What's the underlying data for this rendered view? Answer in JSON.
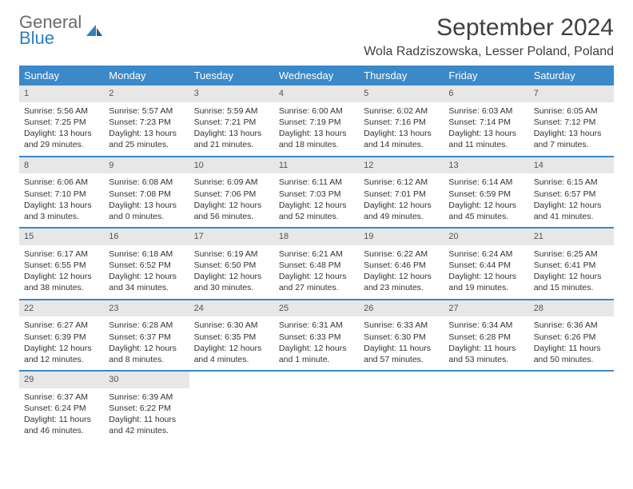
{
  "brand": {
    "line1": "General",
    "line2": "Blue"
  },
  "title": "September 2024",
  "location": "Wola Radziszowska, Lesser Poland, Poland",
  "colors": {
    "header_bg": "#3a89c9",
    "header_fg": "#ffffff",
    "daynum_bg": "#e7e7e7",
    "rule": "#3a89c9",
    "text": "#333333"
  },
  "dayNames": [
    "Sunday",
    "Monday",
    "Tuesday",
    "Wednesday",
    "Thursday",
    "Friday",
    "Saturday"
  ],
  "weeks": [
    [
      {
        "n": "1",
        "sr": "Sunrise: 5:56 AM",
        "ss": "Sunset: 7:25 PM",
        "d1": "Daylight: 13 hours",
        "d2": "and 29 minutes."
      },
      {
        "n": "2",
        "sr": "Sunrise: 5:57 AM",
        "ss": "Sunset: 7:23 PM",
        "d1": "Daylight: 13 hours",
        "d2": "and 25 minutes."
      },
      {
        "n": "3",
        "sr": "Sunrise: 5:59 AM",
        "ss": "Sunset: 7:21 PM",
        "d1": "Daylight: 13 hours",
        "d2": "and 21 minutes."
      },
      {
        "n": "4",
        "sr": "Sunrise: 6:00 AM",
        "ss": "Sunset: 7:19 PM",
        "d1": "Daylight: 13 hours",
        "d2": "and 18 minutes."
      },
      {
        "n": "5",
        "sr": "Sunrise: 6:02 AM",
        "ss": "Sunset: 7:16 PM",
        "d1": "Daylight: 13 hours",
        "d2": "and 14 minutes."
      },
      {
        "n": "6",
        "sr": "Sunrise: 6:03 AM",
        "ss": "Sunset: 7:14 PM",
        "d1": "Daylight: 13 hours",
        "d2": "and 11 minutes."
      },
      {
        "n": "7",
        "sr": "Sunrise: 6:05 AM",
        "ss": "Sunset: 7:12 PM",
        "d1": "Daylight: 13 hours",
        "d2": "and 7 minutes."
      }
    ],
    [
      {
        "n": "8",
        "sr": "Sunrise: 6:06 AM",
        "ss": "Sunset: 7:10 PM",
        "d1": "Daylight: 13 hours",
        "d2": "and 3 minutes."
      },
      {
        "n": "9",
        "sr": "Sunrise: 6:08 AM",
        "ss": "Sunset: 7:08 PM",
        "d1": "Daylight: 13 hours",
        "d2": "and 0 minutes."
      },
      {
        "n": "10",
        "sr": "Sunrise: 6:09 AM",
        "ss": "Sunset: 7:06 PM",
        "d1": "Daylight: 12 hours",
        "d2": "and 56 minutes."
      },
      {
        "n": "11",
        "sr": "Sunrise: 6:11 AM",
        "ss": "Sunset: 7:03 PM",
        "d1": "Daylight: 12 hours",
        "d2": "and 52 minutes."
      },
      {
        "n": "12",
        "sr": "Sunrise: 6:12 AM",
        "ss": "Sunset: 7:01 PM",
        "d1": "Daylight: 12 hours",
        "d2": "and 49 minutes."
      },
      {
        "n": "13",
        "sr": "Sunrise: 6:14 AM",
        "ss": "Sunset: 6:59 PM",
        "d1": "Daylight: 12 hours",
        "d2": "and 45 minutes."
      },
      {
        "n": "14",
        "sr": "Sunrise: 6:15 AM",
        "ss": "Sunset: 6:57 PM",
        "d1": "Daylight: 12 hours",
        "d2": "and 41 minutes."
      }
    ],
    [
      {
        "n": "15",
        "sr": "Sunrise: 6:17 AM",
        "ss": "Sunset: 6:55 PM",
        "d1": "Daylight: 12 hours",
        "d2": "and 38 minutes."
      },
      {
        "n": "16",
        "sr": "Sunrise: 6:18 AM",
        "ss": "Sunset: 6:52 PM",
        "d1": "Daylight: 12 hours",
        "d2": "and 34 minutes."
      },
      {
        "n": "17",
        "sr": "Sunrise: 6:19 AM",
        "ss": "Sunset: 6:50 PM",
        "d1": "Daylight: 12 hours",
        "d2": "and 30 minutes."
      },
      {
        "n": "18",
        "sr": "Sunrise: 6:21 AM",
        "ss": "Sunset: 6:48 PM",
        "d1": "Daylight: 12 hours",
        "d2": "and 27 minutes."
      },
      {
        "n": "19",
        "sr": "Sunrise: 6:22 AM",
        "ss": "Sunset: 6:46 PM",
        "d1": "Daylight: 12 hours",
        "d2": "and 23 minutes."
      },
      {
        "n": "20",
        "sr": "Sunrise: 6:24 AM",
        "ss": "Sunset: 6:44 PM",
        "d1": "Daylight: 12 hours",
        "d2": "and 19 minutes."
      },
      {
        "n": "21",
        "sr": "Sunrise: 6:25 AM",
        "ss": "Sunset: 6:41 PM",
        "d1": "Daylight: 12 hours",
        "d2": "and 15 minutes."
      }
    ],
    [
      {
        "n": "22",
        "sr": "Sunrise: 6:27 AM",
        "ss": "Sunset: 6:39 PM",
        "d1": "Daylight: 12 hours",
        "d2": "and 12 minutes."
      },
      {
        "n": "23",
        "sr": "Sunrise: 6:28 AM",
        "ss": "Sunset: 6:37 PM",
        "d1": "Daylight: 12 hours",
        "d2": "and 8 minutes."
      },
      {
        "n": "24",
        "sr": "Sunrise: 6:30 AM",
        "ss": "Sunset: 6:35 PM",
        "d1": "Daylight: 12 hours",
        "d2": "and 4 minutes."
      },
      {
        "n": "25",
        "sr": "Sunrise: 6:31 AM",
        "ss": "Sunset: 6:33 PM",
        "d1": "Daylight: 12 hours",
        "d2": "and 1 minute."
      },
      {
        "n": "26",
        "sr": "Sunrise: 6:33 AM",
        "ss": "Sunset: 6:30 PM",
        "d1": "Daylight: 11 hours",
        "d2": "and 57 minutes."
      },
      {
        "n": "27",
        "sr": "Sunrise: 6:34 AM",
        "ss": "Sunset: 6:28 PM",
        "d1": "Daylight: 11 hours",
        "d2": "and 53 minutes."
      },
      {
        "n": "28",
        "sr": "Sunrise: 6:36 AM",
        "ss": "Sunset: 6:26 PM",
        "d1": "Daylight: 11 hours",
        "d2": "and 50 minutes."
      }
    ],
    [
      {
        "n": "29",
        "sr": "Sunrise: 6:37 AM",
        "ss": "Sunset: 6:24 PM",
        "d1": "Daylight: 11 hours",
        "d2": "and 46 minutes."
      },
      {
        "n": "30",
        "sr": "Sunrise: 6:39 AM",
        "ss": "Sunset: 6:22 PM",
        "d1": "Daylight: 11 hours",
        "d2": "and 42 minutes."
      },
      null,
      null,
      null,
      null,
      null
    ]
  ]
}
